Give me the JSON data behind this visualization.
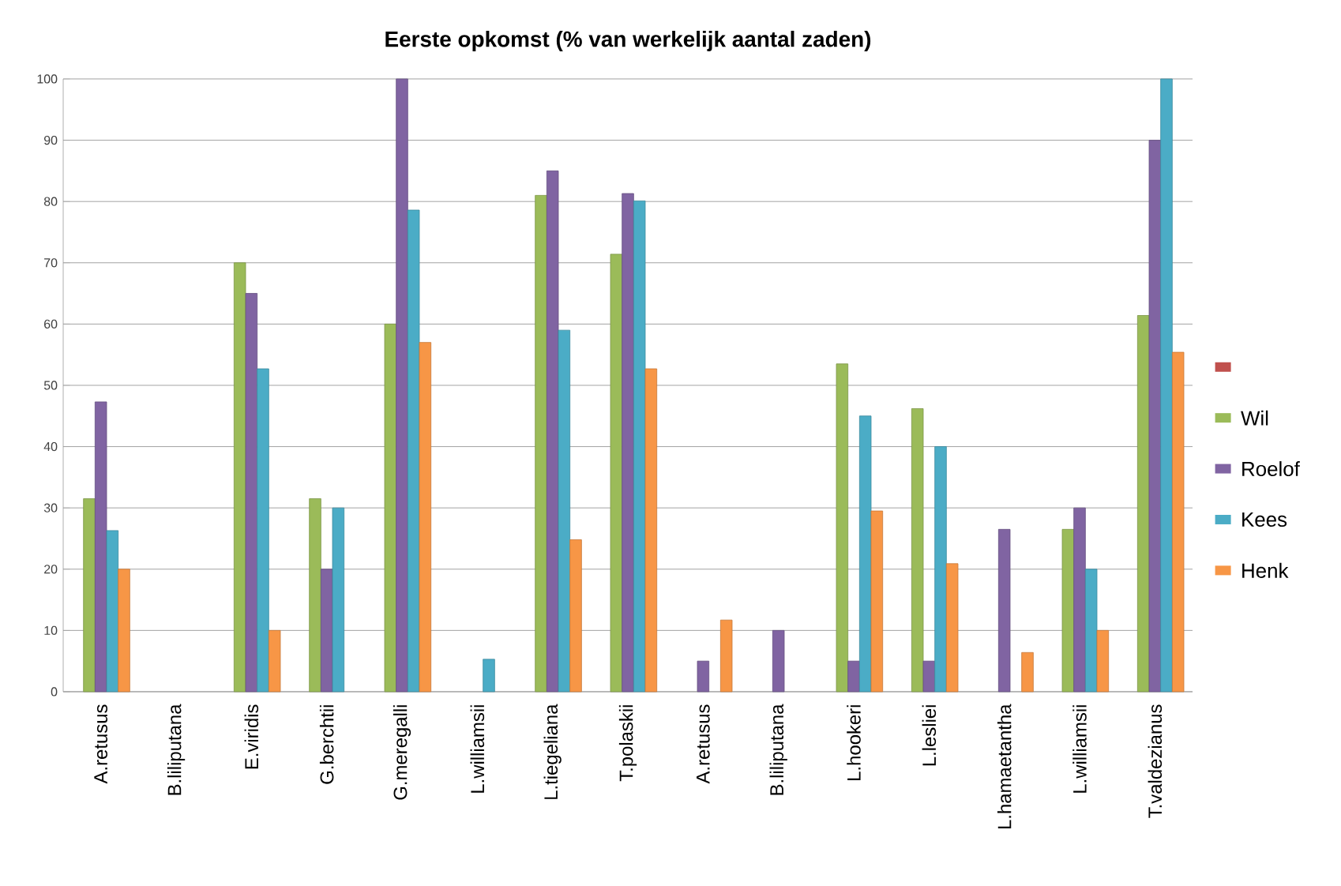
{
  "chart_data": {
    "type": "bar",
    "title": "Eerste opkomst   (% van werkelijk aantal zaden)",
    "categories": [
      "A.retusus",
      "B.liliputana",
      "E.viridis",
      "G.berchtii",
      "G.meregalli",
      "L.williamsii",
      "L.tiegeliana",
      "T.polaskii",
      "A.retusus",
      "B.liliputana",
      "L.hookeri",
      "L.lesliei",
      "L.hamaetantha",
      "L.williamsii",
      "T.valdezianus"
    ],
    "series": [
      {
        "color": "#c0504d",
        "values": [
          null,
          null,
          null,
          null,
          null,
          null,
          null,
          null,
          null,
          null,
          null,
          null,
          null,
          null,
          null
        ]
      },
      {
        "name": "Wil",
        "color": "#9bbb59",
        "values": [
          31.5,
          null,
          70,
          31.5,
          60,
          null,
          81,
          71.4,
          null,
          null,
          53.5,
          46.2,
          null,
          26.5,
          61.4
        ]
      },
      {
        "name": "Roelof",
        "color": "#8064a2",
        "values": [
          47.3,
          null,
          65,
          20,
          100,
          null,
          85,
          81.3,
          5,
          10,
          5,
          5,
          26.5,
          30,
          90
        ]
      },
      {
        "name": "Kees",
        "color": "#4bacc6",
        "values": [
          26.3,
          null,
          52.7,
          30,
          78.6,
          5.3,
          59,
          80.1,
          null,
          null,
          45,
          40,
          null,
          20,
          100
        ]
      },
      {
        "name": "Henk",
        "color": "#f79646",
        "values": [
          20,
          null,
          10,
          null,
          57,
          null,
          24.8,
          52.7,
          11.7,
          null,
          29.5,
          20.9,
          6.4,
          10,
          55.4
        ]
      }
    ],
    "ylim": [
      0,
      100
    ],
    "yticks": [
      0,
      10,
      20,
      30,
      40,
      50,
      60,
      70,
      80,
      90,
      100
    ],
    "grid": "y",
    "legend": "right"
  }
}
